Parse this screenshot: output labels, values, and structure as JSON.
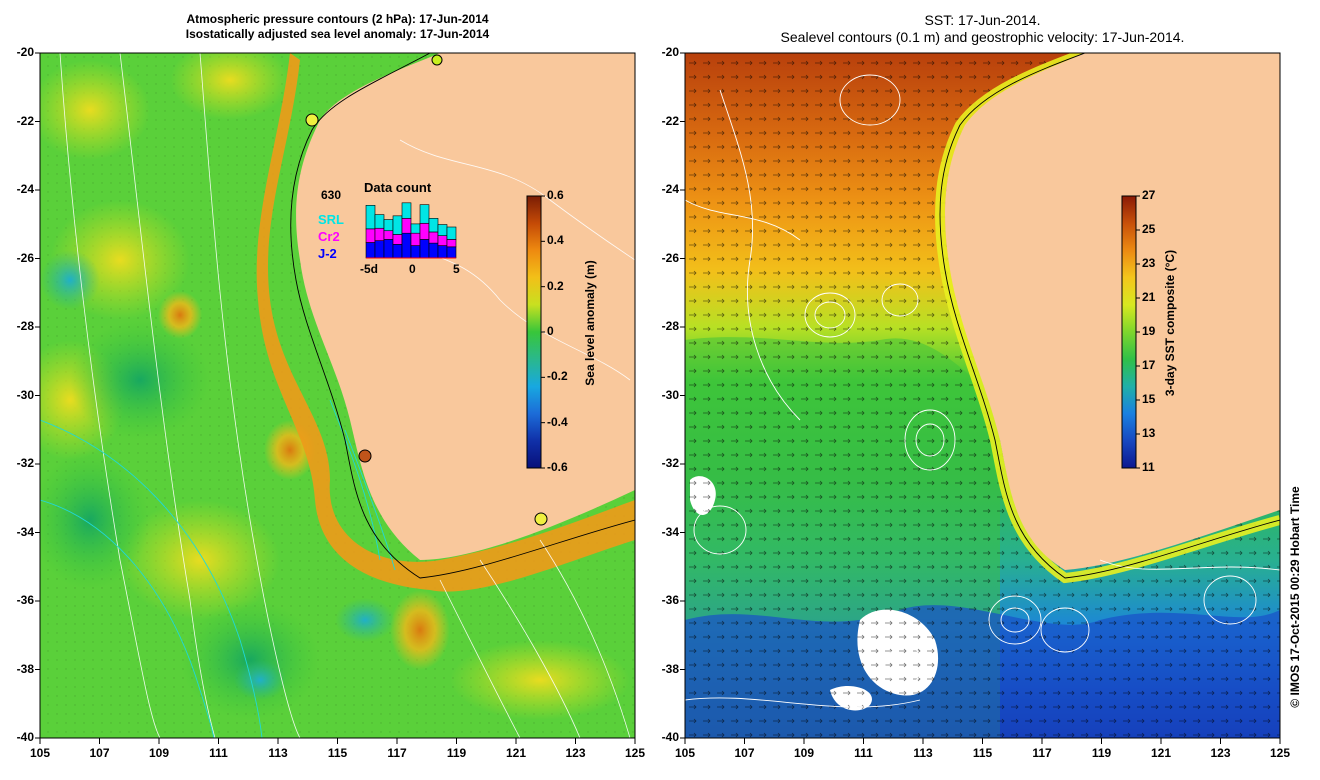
{
  "left_panel": {
    "title_line1": "Atmospheric pressure contours (2 hPa): 17-Jun-2014",
    "title_line2": "Isostatically adjusted sea level anomaly: 17-Jun-2014",
    "colorbar": {
      "label": "Sea level anomaly (m)",
      "ticks": [
        "0.6",
        "0.4",
        "0.2",
        "0",
        "-0.2",
        "-0.4",
        "-0.6"
      ],
      "colors": [
        "#7a1d05",
        "#c44a06",
        "#ee8a10",
        "#f2c018",
        "#c8e020",
        "#38c63a",
        "#2ab88c",
        "#18a8e0",
        "#1c6cd8",
        "#1030a8",
        "#08107a"
      ]
    },
    "inset": {
      "count": "630",
      "title": "Data count",
      "legend": [
        {
          "label": "SRL",
          "color": "#00e5e5"
        },
        {
          "label": "Cr2",
          "color": "#ff00ff"
        },
        {
          "label": "J-2",
          "color": "#0000ff"
        }
      ],
      "xticks": [
        "-5d",
        "0",
        "5"
      ],
      "bars": [
        {
          "srl": 0.38,
          "cr2": 0.22,
          "j2": 0.25
        },
        {
          "srl": 0.22,
          "cr2": 0.2,
          "j2": 0.28
        },
        {
          "srl": 0.18,
          "cr2": 0.14,
          "j2": 0.3
        },
        {
          "srl": 0.3,
          "cr2": 0.16,
          "j2": 0.22
        },
        {
          "srl": 0.25,
          "cr2": 0.24,
          "j2": 0.4
        },
        {
          "srl": 0.15,
          "cr2": 0.2,
          "j2": 0.2
        },
        {
          "srl": 0.3,
          "cr2": 0.26,
          "j2": 0.3
        },
        {
          "srl": 0.22,
          "cr2": 0.18,
          "j2": 0.24
        },
        {
          "srl": 0.18,
          "cr2": 0.16,
          "j2": 0.2
        },
        {
          "srl": 0.2,
          "cr2": 0.12,
          "j2": 0.18
        }
      ]
    }
  },
  "right_panel": {
    "title_line1": "SST: 17-Jun-2014.",
    "title_line2": "Sealevel contours (0.1 m) and geostrophic velocity: 17-Jun-2014.",
    "colorbar": {
      "label": "3-day SST composite (°C)",
      "ticks": [
        "27",
        "25",
        "23",
        "21",
        "19",
        "17",
        "15",
        "13",
        "11"
      ],
      "colors": [
        "#8a1a06",
        "#c8500a",
        "#ec8a12",
        "#f4c61c",
        "#d8e820",
        "#7ed62c",
        "#30c048",
        "#20b0a8",
        "#1a80e0",
        "#1848c0",
        "#0c1890"
      ]
    }
  },
  "axes": {
    "x_ticks": [
      "105",
      "107",
      "109",
      "111",
      "113",
      "115",
      "117",
      "119",
      "121",
      "123",
      "125"
    ],
    "y_ticks": [
      "-20",
      "-22",
      "-24",
      "-26",
      "-28",
      "-30",
      "-32",
      "-34",
      "-36",
      "-38",
      "-40"
    ]
  },
  "credit": "© IMOS 17-Oct-2015 00:29 Hobart Time",
  "land_color": "#f9c89c"
}
